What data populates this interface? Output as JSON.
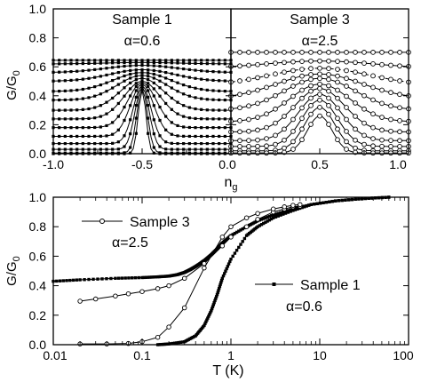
{
  "chart_data": [
    {
      "id": "top-left",
      "type": "line",
      "panel_label": "Sample 1",
      "alpha_label": "α=0.6",
      "xlim": [
        -1.0,
        0.0
      ],
      "ylim": [
        0.0,
        1.0
      ],
      "x_ticks": [
        "-1.0",
        "-0.5",
        "0.0"
      ],
      "y_ticks": [
        "0.0",
        "0.2",
        "0.4",
        "0.6",
        "0.8",
        "1.0"
      ],
      "ylabel_main": "G/G",
      "ylabel_sub": "0",
      "peak_center": -0.5,
      "curve_params": [
        {
          "base": 0.645,
          "peak": 0.645,
          "width": 0.2
        },
        {
          "base": 0.62,
          "peak": 0.63,
          "width": 0.2
        },
        {
          "base": 0.56,
          "peak": 0.61,
          "width": 0.2
        },
        {
          "base": 0.5,
          "peak": 0.58,
          "width": 0.18
        },
        {
          "base": 0.43,
          "peak": 0.56,
          "width": 0.16
        },
        {
          "base": 0.37,
          "peak": 0.54,
          "width": 0.14
        },
        {
          "base": 0.3,
          "peak": 0.52,
          "width": 0.12
        },
        {
          "base": 0.24,
          "peak": 0.5,
          "width": 0.1
        },
        {
          "base": 0.18,
          "peak": 0.49,
          "width": 0.08
        },
        {
          "base": 0.12,
          "peak": 0.48,
          "width": 0.065
        },
        {
          "base": 0.07,
          "peak": 0.47,
          "width": 0.05
        },
        {
          "base": 0.03,
          "peak": 0.46,
          "width": 0.04
        },
        {
          "base": 0.005,
          "peak": 0.45,
          "width": 0.03
        },
        {
          "base": 0.0,
          "peak": 0.44,
          "width": 0.022
        }
      ]
    },
    {
      "id": "top-right",
      "type": "line",
      "panel_label": "Sample 3",
      "alpha_label": "α=2.5",
      "xlim": [
        0.0,
        1.0
      ],
      "ylim": [
        0.0,
        1.0
      ],
      "x_ticks": [
        "0.0",
        "0.5",
        "1.0"
      ],
      "xlabel_main": "n",
      "xlabel_sub": "g",
      "peak_center": 0.5,
      "curve_params": [
        {
          "base": 0.7,
          "peak": 0.7,
          "width": 0.3
        },
        {
          "base": 0.59,
          "peak": 0.64,
          "width": 0.3
        },
        {
          "base": 0.47,
          "peak": 0.59,
          "width": 0.28,
          "dashed": true
        },
        {
          "base": 0.38,
          "peak": 0.55,
          "width": 0.24
        },
        {
          "base": 0.3,
          "peak": 0.52,
          "width": 0.2
        },
        {
          "base": 0.22,
          "peak": 0.48,
          "width": 0.17
        },
        {
          "base": 0.15,
          "peak": 0.45,
          "width": 0.14
        },
        {
          "base": 0.09,
          "peak": 0.41,
          "width": 0.12
        },
        {
          "base": 0.05,
          "peak": 0.37,
          "width": 0.1
        },
        {
          "base": 0.02,
          "peak": 0.32,
          "width": 0.085
        },
        {
          "base": 0.005,
          "peak": 0.26,
          "width": 0.07
        }
      ]
    },
    {
      "id": "bottom",
      "type": "line",
      "xscale": "log",
      "xlim": [
        0.01,
        100
      ],
      "ylim": [
        0.0,
        1.0
      ],
      "x_ticks": [
        "0.01",
        "0.1",
        "1",
        "10",
        "100"
      ],
      "y_ticks": [
        "0.0",
        "0.2",
        "0.4",
        "0.6",
        "0.8",
        "1.0"
      ],
      "xlabel": "T (K)",
      "ylabel_main": "G/G",
      "ylabel_sub": "0",
      "annotations": [
        {
          "key": "s3",
          "text": "Sample 3"
        },
        {
          "key": "a3",
          "text": "α=2.5"
        },
        {
          "key": "s1",
          "text": "Sample 1"
        },
        {
          "key": "a1",
          "text": "α=0.6"
        }
      ],
      "series": [
        {
          "marker": "filled-square",
          "line": "solid",
          "x": [
            0.01,
            0.02,
            0.05,
            0.1,
            0.15,
            0.2,
            0.25,
            0.3,
            0.35,
            0.4,
            0.45,
            0.5,
            0.6,
            0.7,
            0.8,
            1.0,
            1.5,
            2,
            3,
            5,
            8,
            15,
            30,
            60
          ],
          "y": [
            0.43,
            0.44,
            0.45,
            0.455,
            0.46,
            0.465,
            0.475,
            0.49,
            0.51,
            0.53,
            0.55,
            0.57,
            0.61,
            0.65,
            0.69,
            0.74,
            0.8,
            0.84,
            0.88,
            0.92,
            0.95,
            0.975,
            0.99,
            1.0
          ]
        },
        {
          "marker": "filled-square",
          "line": "solid",
          "x": [
            0.15,
            0.2,
            0.3,
            0.4,
            0.5,
            0.6,
            0.7,
            0.8,
            1.0,
            1.5,
            2,
            3,
            5,
            8,
            15,
            30,
            60
          ],
          "y": [
            0.0,
            0.005,
            0.02,
            0.06,
            0.13,
            0.23,
            0.34,
            0.45,
            0.58,
            0.74,
            0.8,
            0.86,
            0.91,
            0.95,
            0.975,
            0.99,
            1.0
          ]
        },
        {
          "marker": "open-circle",
          "line": "solid",
          "x": [
            0.02,
            0.03,
            0.05,
            0.07,
            0.1,
            0.15,
            0.2,
            0.3,
            0.5,
            0.8,
            1,
            1.5,
            2,
            3,
            4,
            5,
            6
          ],
          "y": [
            0.295,
            0.31,
            0.33,
            0.345,
            0.36,
            0.38,
            0.4,
            0.45,
            0.55,
            0.67,
            0.73,
            0.8,
            0.85,
            0.9,
            0.92,
            0.935,
            0.94
          ]
        },
        {
          "marker": "open-circle",
          "line": "solid",
          "x": [
            0.02,
            0.04,
            0.07,
            0.1,
            0.15,
            0.2,
            0.3,
            0.5,
            0.8,
            1,
            1.5,
            2,
            3,
            4,
            5,
            6
          ],
          "y": [
            0.005,
            0.005,
            0.008,
            0.02,
            0.05,
            0.12,
            0.25,
            0.52,
            0.73,
            0.8,
            0.86,
            0.89,
            0.92,
            0.935,
            0.945,
            0.95
          ]
        }
      ]
    }
  ]
}
